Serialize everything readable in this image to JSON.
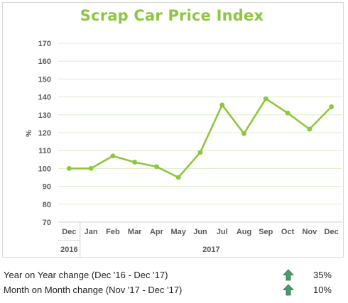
{
  "chart_data": {
    "type": "line",
    "title": "Scrap Car Price Index",
    "ylabel": "%",
    "xlabel": "",
    "ylim": [
      70,
      170
    ],
    "yticks": [
      70,
      80,
      90,
      100,
      110,
      120,
      130,
      140,
      150,
      160,
      170
    ],
    "grid": true,
    "legend": "none",
    "categories": [
      "Dec",
      "Jan",
      "Feb",
      "Mar",
      "Apr",
      "May",
      "Jun",
      "Jul",
      "Aug",
      "Sep",
      "Oct",
      "Nov",
      "Dec"
    ],
    "year_groups": [
      {
        "label": "2016",
        "span": 1
      },
      {
        "label": "2017",
        "span": 12
      }
    ],
    "series": [
      {
        "values": [
          100,
          100,
          107,
          103.5,
          101,
          95,
          109,
          135.5,
          119.5,
          139,
          131,
          122,
          134.5
        ]
      }
    ],
    "colors": {
      "line": "#8dc63f",
      "title": "#8dc63f",
      "grid": "#dcedc8",
      "axis_text": "#595959"
    }
  },
  "stats": [
    {
      "label": "Year on Year change (Dec '16 - Dec '17)",
      "icon": "up-arrow-icon",
      "value": "35%"
    },
    {
      "label": "Month on Month change (Nov '17 - Dec '17)",
      "icon": "up-arrow-icon",
      "value": "10%"
    }
  ]
}
